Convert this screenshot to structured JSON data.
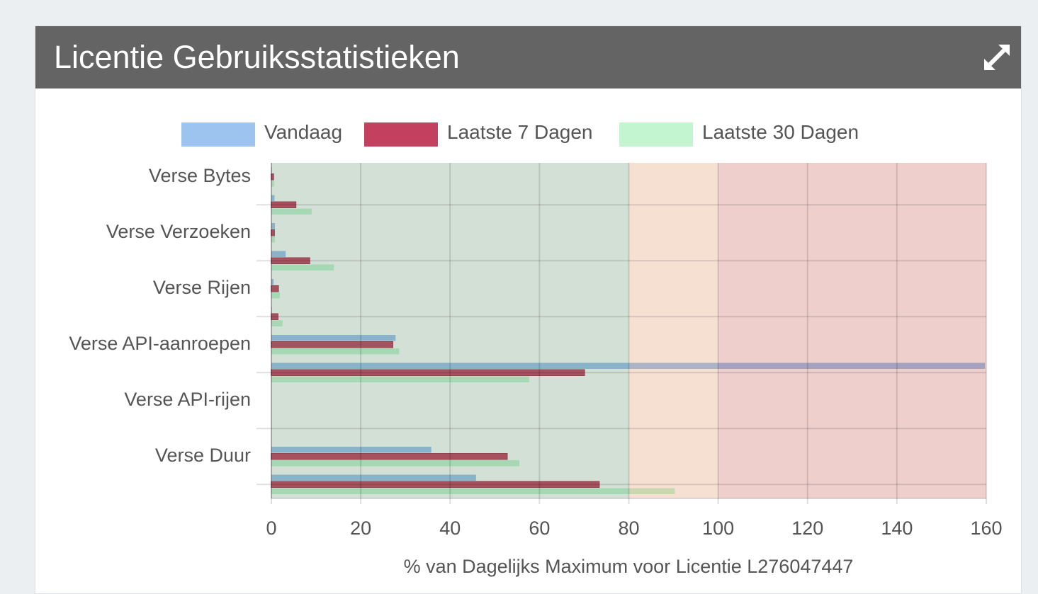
{
  "header": {
    "title": "Licentie Gebruiksstatistieken",
    "expand_icon": "expand-arrows-icon"
  },
  "colors": {
    "vandaag": "#9dc3ef",
    "laatste7": "#c4405f",
    "laatste30": "#c3f5d0",
    "header_bg": "#646464"
  },
  "chart_data": {
    "type": "bar",
    "orientation": "horizontal",
    "title": "",
    "xlabel": "% van Dagelijks Maximum voor Licentie L276047447",
    "ylabel": "",
    "xlim": [
      0,
      160
    ],
    "xticks": [
      "0",
      "20",
      "40",
      "60",
      "80",
      "100",
      "120",
      "140",
      "160"
    ],
    "legend": {
      "placement": "top",
      "entries": [
        "Vandaag",
        "Laatste 7 Dagen",
        "Laatste 30 Dagen"
      ]
    },
    "categories": [
      "Verse Bytes",
      "",
      "Verse Verzoeken",
      "",
      "Verse Rijen",
      "",
      "Verse API-aanroepen",
      "",
      "Verse API-rijen",
      "",
      "Verse Duur",
      ""
    ],
    "series": [
      {
        "name": "Vandaag",
        "values": [
          0.1,
          0.7,
          0.8,
          3.2,
          0.5,
          0.1,
          27.8,
          159.7,
          0,
          0,
          35.8,
          45.8
        ]
      },
      {
        "name": "Laatste 7 Dagen",
        "values": [
          0.5,
          5.5,
          0.7,
          8.6,
          1.6,
          1.5,
          27.2,
          70.1,
          0,
          0,
          52.8,
          73.4
        ]
      },
      {
        "name": "Laatste 30 Dagen",
        "values": [
          0.6,
          9.0,
          0.8,
          14.0,
          1.9,
          2.5,
          28.6,
          57.7,
          0,
          0,
          55.5,
          90.3
        ]
      }
    ],
    "zones": [
      {
        "from": 0,
        "to": 80,
        "color": "rgba(80,130,90,0.25)"
      },
      {
        "from": 80,
        "to": 100,
        "color": "rgba(219,131,75,0.25)"
      },
      {
        "from": 100,
        "to": 160,
        "color": "rgba(187,63,51,0.25)"
      }
    ],
    "grid": true
  }
}
